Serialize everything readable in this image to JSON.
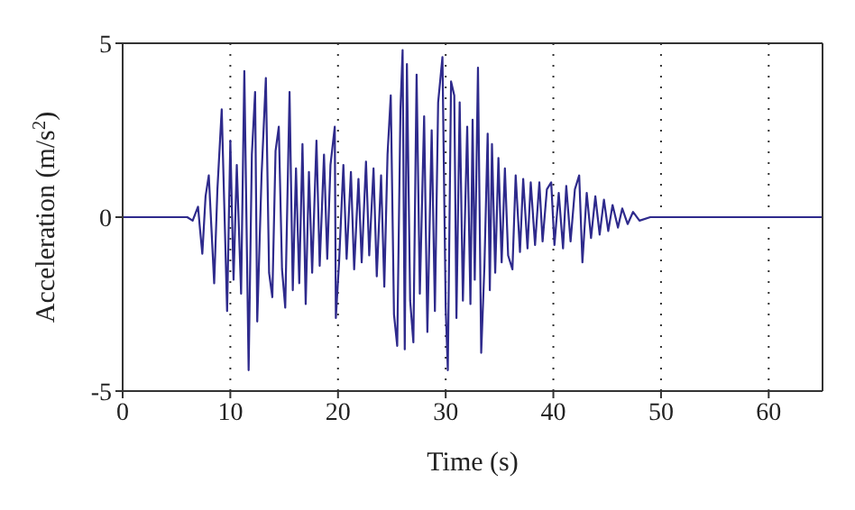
{
  "chart_data": {
    "type": "line",
    "xlabel": "Time (s)",
    "ylabel": "Acceleration (m/s$^{2}$)",
    "x": [
      0,
      6,
      6.5,
      7,
      7.2,
      7.4,
      7.7,
      8,
      8.5,
      8.8,
      9.2,
      9.7,
      10,
      10.3,
      10.6,
      11,
      11.3,
      11.7,
      12,
      12.3,
      12.5,
      12.9,
      13.3,
      13.6,
      13.9,
      14.2,
      14.5,
      14.8,
      15.1,
      15.5,
      15.8,
      16.1,
      16.4,
      16.7,
      17,
      17.3,
      17.6,
      18,
      18.3,
      18.7,
      19,
      19.3,
      19.7,
      19.8,
      20.1,
      20.5,
      20.8,
      21.2,
      21.5,
      21.9,
      22.2,
      22.6,
      22.9,
      23.3,
      23.6,
      24,
      24.3,
      24.6,
      24.9,
      25.2,
      25.5,
      25.8,
      26,
      26.2,
      26.4,
      26.7,
      27,
      27.3,
      27.6,
      28,
      28.3,
      28.7,
      29,
      29.3,
      29.7,
      30,
      30.2,
      30.5,
      30.8,
      31,
      31.3,
      31.6,
      32,
      32.3,
      32.5,
      32.7,
      33,
      33.3,
      33.6,
      33.9,
      34.1,
      34.3,
      34.6,
      34.9,
      35.2,
      35.5,
      35.8,
      36.2,
      36.5,
      36.9,
      37.2,
      37.6,
      37.9,
      38.3,
      38.7,
      39,
      39.4,
      39.8,
      40.1,
      40.5,
      40.9,
      41.2,
      41.6,
      42,
      42.4,
      42.7,
      43.1,
      43.5,
      43.9,
      44.3,
      44.7,
      45.1,
      45.5,
      46,
      46.4,
      46.9,
      47.4,
      48,
      49,
      65
    ],
    "values": [
      0,
      0,
      -0.1,
      0.3,
      -0.4,
      -1.05,
      0.6,
      1.2,
      -1.9,
      0.8,
      3.1,
      -2.7,
      2.2,
      -1.8,
      1.5,
      -2.2,
      4.2,
      -4.4,
      1.8,
      3.6,
      -3,
      1.2,
      4,
      -1.6,
      -2.3,
      1.9,
      2.6,
      -1.5,
      -2.6,
      3.6,
      -2.1,
      1.4,
      -1.9,
      2.1,
      -2.5,
      1.3,
      -1.6,
      2.2,
      -1.4,
      1.8,
      -1.2,
      1.5,
      2.6,
      -2.9,
      -1.3,
      1.5,
      -1.2,
      1.3,
      -1.5,
      1.1,
      -1.3,
      1.6,
      -1.1,
      1.4,
      -1.7,
      1.2,
      -2,
      1.8,
      3.5,
      -2.8,
      -3.7,
      3.1,
      4.8,
      -3.8,
      4.4,
      -2.4,
      -3.6,
      4.1,
      -2.2,
      2.9,
      -3.3,
      2.5,
      -2.7,
      3.3,
      4.6,
      -2.6,
      -4.4,
      3.9,
      3.5,
      -2.9,
      3.3,
      -2.4,
      2.6,
      -2.5,
      2.8,
      -1.8,
      4.3,
      -3.9,
      -1.4,
      2.4,
      -2.1,
      2.1,
      -1.6,
      1.7,
      -1.3,
      1.4,
      -1.1,
      -1.5,
      1.2,
      -1,
      1.1,
      -0.9,
      1,
      -0.8,
      1,
      -0.7,
      0.8,
      1,
      -0.8,
      0.7,
      -0.9,
      0.9,
      -0.7,
      0.8,
      1.2,
      -1.3,
      0.7,
      -0.6,
      0.6,
      -0.5,
      0.5,
      -0.4,
      0.35,
      -0.3,
      0.25,
      -0.2,
      0.15,
      -0.1,
      0,
      0
    ],
    "color": "#2e2a8c",
    "xlim": [
      0,
      65
    ],
    "ylim": [
      -5,
      5
    ],
    "xticks": [
      0,
      10,
      20,
      30,
      40,
      50,
      60
    ],
    "yticks": [
      -5,
      0,
      5
    ],
    "grid": "x"
  }
}
